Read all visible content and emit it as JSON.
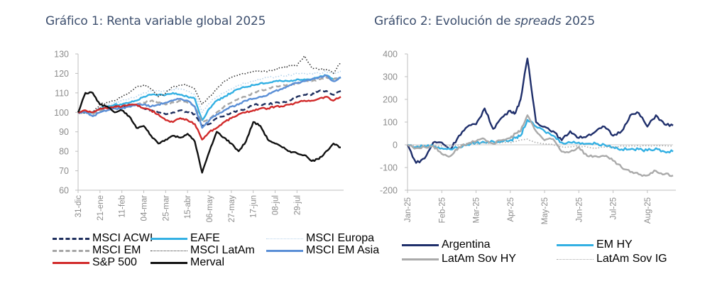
{
  "charts": {
    "chart1_title": "Gráfico 1: Renta variable global 2025",
    "chart2_title_prefix": "Gráfico 2: Evolución de ",
    "chart2_title_italic": "spreads",
    "chart2_title_suffix": " 2025"
  },
  "chart_data": [
    {
      "type": "line",
      "title": "Gráfico 1: Renta variable global 2025",
      "xlabel": "",
      "ylabel": "",
      "ylim": [
        60,
        130
      ],
      "yticks": [
        60,
        70,
        80,
        90,
        100,
        110,
        120,
        130
      ],
      "xlim": [
        0,
        36
      ],
      "xticks": [
        {
          "x": 0,
          "label": "31-dic"
        },
        {
          "x": 3,
          "label": "21-ene"
        },
        {
          "x": 6,
          "label": "11-feb"
        },
        {
          "x": 9,
          "label": "04-mar"
        },
        {
          "x": 12,
          "label": "25-mar"
        },
        {
          "x": 15,
          "label": "15-abr"
        },
        {
          "x": 18,
          "label": "06-may"
        },
        {
          "x": 21,
          "label": "27-may"
        },
        {
          "x": 24,
          "label": "17-jun"
        },
        {
          "x": 27,
          "label": "08-jul"
        },
        {
          "x": 30,
          "label": "29-jul"
        }
      ],
      "grid": false,
      "legend_position": "bottom",
      "x": [
        0,
        1,
        2,
        3,
        4,
        5,
        6,
        7,
        8,
        9,
        10,
        11,
        12,
        13,
        14,
        15,
        16,
        17,
        18,
        19,
        20,
        21,
        22,
        23,
        24,
        25,
        26,
        27,
        28,
        29,
        30,
        31,
        32,
        33,
        34,
        35,
        36
      ],
      "series": [
        {
          "name": "MSCI ACWI",
          "color": "#1f2f5e",
          "style": "dashed",
          "values": [
            100,
            100,
            100,
            101,
            102,
            103,
            103,
            104,
            104,
            102,
            101,
            100,
            99,
            100,
            101,
            100,
            99,
            93,
            94,
            97,
            98,
            100,
            101,
            102,
            104,
            104,
            104,
            105,
            105,
            106,
            108,
            109,
            109,
            111,
            111,
            109,
            111
          ]
        },
        {
          "name": "EAFE",
          "color": "#33b0e3",
          "style": "solid",
          "values": [
            100,
            100,
            100,
            102,
            103,
            104,
            104,
            105,
            106,
            108,
            109,
            109,
            109,
            110,
            109,
            108,
            107,
            96,
            102,
            106,
            108,
            110,
            112,
            113,
            114,
            115,
            115,
            116,
            116,
            116,
            117,
            117,
            117,
            118,
            119,
            117,
            118
          ]
        },
        {
          "name": "MSCI Europa",
          "color": "#b5d3ec",
          "style": "dotted",
          "values": [
            100,
            100,
            100,
            102,
            104,
            105,
            106,
            107,
            108,
            110,
            111,
            111,
            111,
            112,
            112,
            111,
            109,
            100,
            105,
            108,
            110,
            112,
            114,
            115,
            116,
            117,
            118,
            118,
            119,
            119,
            120,
            120,
            120,
            120,
            121,
            120,
            121
          ]
        },
        {
          "name": "MSCI EM",
          "color": "#a6a6a6",
          "style": "dashed",
          "values": [
            100,
            100,
            99,
            101,
            102,
            103,
            103,
            104,
            104,
            105,
            106,
            105,
            104,
            105,
            106,
            105,
            103,
            95,
            97,
            100,
            103,
            105,
            107,
            108,
            110,
            111,
            112,
            113,
            114,
            114,
            115,
            116,
            116,
            117,
            118,
            117,
            118
          ]
        },
        {
          "name": "MSCI LatAm",
          "color": "#333333",
          "style": "dotted",
          "values": [
            100,
            100,
            100,
            104,
            105,
            106,
            108,
            110,
            113,
            114,
            112,
            108,
            110,
            113,
            114,
            114,
            112,
            104,
            108,
            112,
            116,
            118,
            119,
            120,
            121,
            121,
            121,
            122,
            123,
            124,
            124,
            129,
            123,
            122,
            122,
            120,
            126
          ]
        },
        {
          "name": "MSCI EM Asia",
          "color": "#5b8fd6",
          "style": "solid",
          "values": [
            100,
            100,
            98,
            100,
            101,
            102,
            102,
            103,
            104,
            104,
            103,
            104,
            105,
            106,
            107,
            106,
            103,
            92,
            96,
            99,
            101,
            103,
            104,
            106,
            107,
            108,
            109,
            111,
            112,
            114,
            115,
            116,
            117,
            118,
            119,
            116,
            118
          ]
        },
        {
          "name": "S&P 500",
          "color": "#d12a2a",
          "style": "solid",
          "values": [
            100,
            101,
            100,
            102,
            102,
            103,
            103,
            104,
            104,
            102,
            101,
            99,
            96,
            95,
            97,
            96,
            94,
            86,
            90,
            92,
            95,
            97,
            99,
            100,
            101,
            102,
            102,
            103,
            103,
            104,
            105,
            106,
            106,
            107,
            108,
            106,
            108
          ]
        },
        {
          "name": "Merval",
          "color": "#111111",
          "style": "solid",
          "values": [
            100,
            110,
            110,
            104,
            103,
            100,
            101,
            98,
            92,
            93,
            88,
            84,
            86,
            88,
            87,
            89,
            85,
            69,
            80,
            90,
            87,
            84,
            80,
            85,
            95,
            93,
            86,
            84,
            82,
            80,
            79,
            78,
            75,
            76,
            80,
            84,
            82
          ]
        }
      ]
    },
    {
      "type": "line",
      "title": "Gráfico 2: Evolución de spreads 2025",
      "xlabel": "",
      "ylabel": "",
      "ylim": [
        -200,
        400
      ],
      "yticks": [
        -200,
        -100,
        0,
        100,
        200,
        300,
        400
      ],
      "xlim": [
        0,
        7.75
      ],
      "xticks": [
        {
          "x": 0,
          "label": "Jan-25"
        },
        {
          "x": 1,
          "label": "Feb-25"
        },
        {
          "x": 2,
          "label": "Mar-25"
        },
        {
          "x": 3,
          "label": "Apr-25"
        },
        {
          "x": 4,
          "label": "May-25"
        },
        {
          "x": 5,
          "label": "Jun-25"
        },
        {
          "x": 6,
          "label": "Jul-25"
        },
        {
          "x": 7,
          "label": "Aug-25"
        }
      ],
      "grid": false,
      "zero_line": true,
      "legend_position": "bottom",
      "x": [
        0,
        0.25,
        0.5,
        0.75,
        1,
        1.25,
        1.5,
        1.75,
        2,
        2.25,
        2.5,
        2.75,
        3,
        3.15,
        3.3,
        3.5,
        3.75,
        4,
        4.25,
        4.5,
        4.75,
        5,
        5.25,
        5.5,
        5.75,
        6,
        6.25,
        6.5,
        6.75,
        7,
        7.25,
        7.5,
        7.75
      ],
      "series": [
        {
          "name": "Argentina",
          "color": "#1f2f6b",
          "style": "solid",
          "values": [
            0,
            -80,
            -60,
            10,
            10,
            -20,
            40,
            80,
            90,
            160,
            70,
            120,
            150,
            140,
            200,
            380,
            100,
            80,
            60,
            20,
            60,
            30,
            40,
            60,
            80,
            40,
            60,
            130,
            140,
            80,
            130,
            90,
            85
          ]
        },
        {
          "name": "EM HY",
          "color": "#33b0e3",
          "style": "solid",
          "values": [
            0,
            -10,
            -5,
            -5,
            -15,
            -20,
            -10,
            0,
            10,
            10,
            15,
            15,
            20,
            30,
            40,
            110,
            80,
            60,
            40,
            10,
            10,
            10,
            5,
            5,
            0,
            -10,
            -20,
            -20,
            -20,
            -25,
            -15,
            -30,
            -30
          ]
        },
        {
          "name": "LatAm Sov HY",
          "color": "#aaaaaa",
          "style": "solid",
          "values": [
            0,
            -15,
            -10,
            -5,
            -40,
            -50,
            -10,
            5,
            15,
            25,
            5,
            20,
            30,
            50,
            60,
            130,
            60,
            20,
            25,
            -30,
            -30,
            -10,
            -50,
            -50,
            -50,
            -70,
            -100,
            -120,
            -130,
            -135,
            -115,
            -130,
            -135
          ]
        },
        {
          "name": "LatAm Sov IG",
          "color": "#aaaaaa",
          "style": "dotted",
          "values": [
            0,
            -5,
            -10,
            -5,
            -5,
            -5,
            0,
            5,
            5,
            10,
            5,
            10,
            10,
            15,
            20,
            25,
            10,
            5,
            0,
            -10,
            -10,
            -5,
            -10,
            -15,
            -10,
            -10,
            -5,
            -5,
            -5,
            -5,
            -5,
            -5,
            -5
          ]
        }
      ]
    }
  ]
}
